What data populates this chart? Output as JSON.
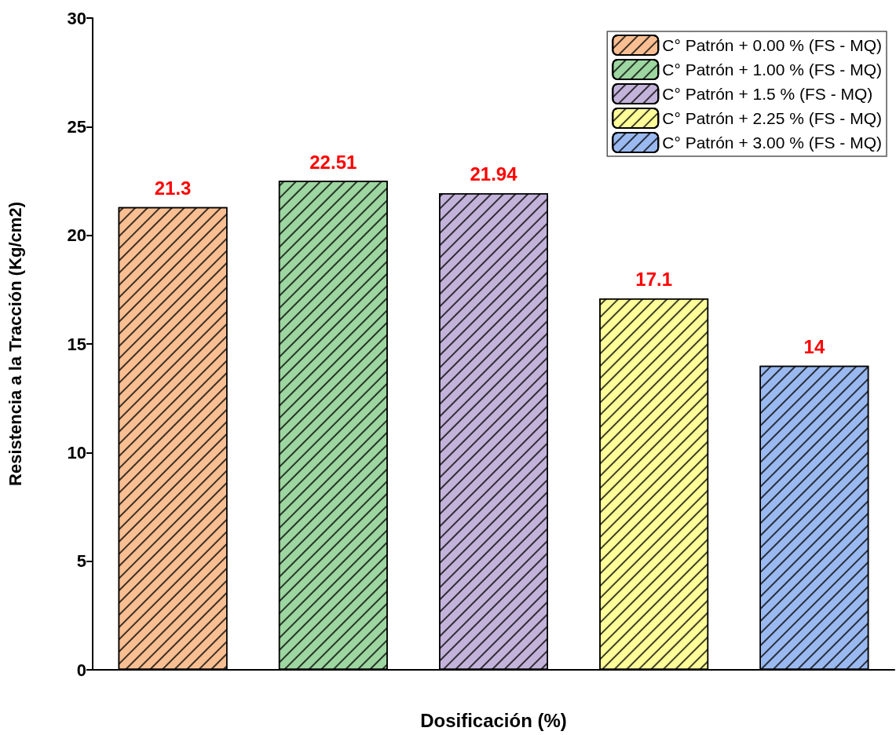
{
  "chart_data": {
    "type": "bar",
    "xlabel": "Dosificación (%)",
    "ylabel": "Resistencia a la Tracción (Kg/cm2)",
    "categories": [
      null,
      null,
      null,
      null,
      null
    ],
    "series": [
      {
        "name": "C° Patrón + 0.00 % (FS - MQ)",
        "color": "#f9bf92",
        "values": [
          21.3,
          null,
          null,
          null,
          null
        ]
      },
      {
        "name": "C° Patrón + 1.00 % (FS - MQ)",
        "color": "#9dd6a0",
        "values": [
          null,
          22.51,
          null,
          null,
          null
        ]
      },
      {
        "name": "C° Patrón + 1.5 % (FS - MQ)",
        "color": "#c3b3da",
        "values": [
          null,
          null,
          21.94,
          null,
          null
        ]
      },
      {
        "name": "C° Patrón + 2.25 % (FS - MQ)",
        "color": "#ffff9a",
        "values": [
          null,
          null,
          null,
          17.1,
          null
        ]
      },
      {
        "name": "C° Patrón + 3.00 % (FS - MQ)",
        "color": "#9ab9f0",
        "values": [
          null,
          null,
          null,
          null,
          14
        ]
      }
    ],
    "ylim": [
      0,
      30
    ],
    "yticks": [
      0,
      5,
      10,
      15,
      20,
      25,
      30
    ],
    "data_labels": true,
    "legend": "top right",
    "grid": false
  }
}
